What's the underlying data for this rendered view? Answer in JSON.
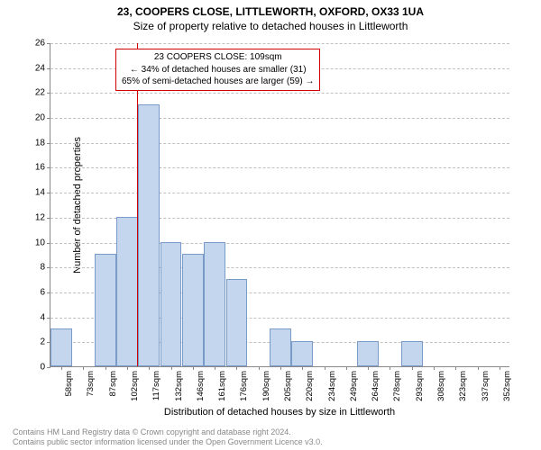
{
  "title": {
    "main": "23, COOPERS CLOSE, LITTLEWORTH, OXFORD, OX33 1UA",
    "sub": "Size of property relative to detached houses in Littleworth"
  },
  "chart": {
    "type": "histogram",
    "ylabel": "Number of detached properties",
    "xlabel": "Distribution of detached houses by size in Littleworth",
    "ylim": [
      0,
      26
    ],
    "ytick_step": 2,
    "yticks": [
      0,
      2,
      4,
      6,
      8,
      10,
      12,
      14,
      16,
      18,
      20,
      22,
      24,
      26
    ],
    "bar_color": "#c4d6ed",
    "bar_border_color": "#7a9ac8",
    "grid_color": "#c0c0c0",
    "axis_color": "#888888",
    "background_color": "#ffffff",
    "categories": [
      "58sqm",
      "73sqm",
      "87sqm",
      "102sqm",
      "117sqm",
      "132sqm",
      "146sqm",
      "161sqm",
      "176sqm",
      "190sqm",
      "205sqm",
      "220sqm",
      "234sqm",
      "249sqm",
      "264sqm",
      "278sqm",
      "293sqm",
      "308sqm",
      "323sqm",
      "337sqm",
      "352sqm"
    ],
    "values": [
      3,
      0,
      9,
      12,
      21,
      10,
      9,
      10,
      7,
      0,
      3,
      2,
      0,
      0,
      2,
      0,
      2,
      0,
      0,
      0,
      0
    ],
    "reference_line": {
      "position_sqm": 109,
      "color": "#d00000"
    },
    "annotation": {
      "border_color": "#d00000",
      "lines": [
        "23 COOPERS CLOSE: 109sqm",
        "← 34% of detached houses are smaller (31)",
        "65% of semi-detached houses are larger (59) →"
      ]
    }
  },
  "footer": {
    "line1": "Contains HM Land Registry data © Crown copyright and database right 2024.",
    "line2": "Contains public sector information licensed under the Open Government Licence v3.0."
  }
}
